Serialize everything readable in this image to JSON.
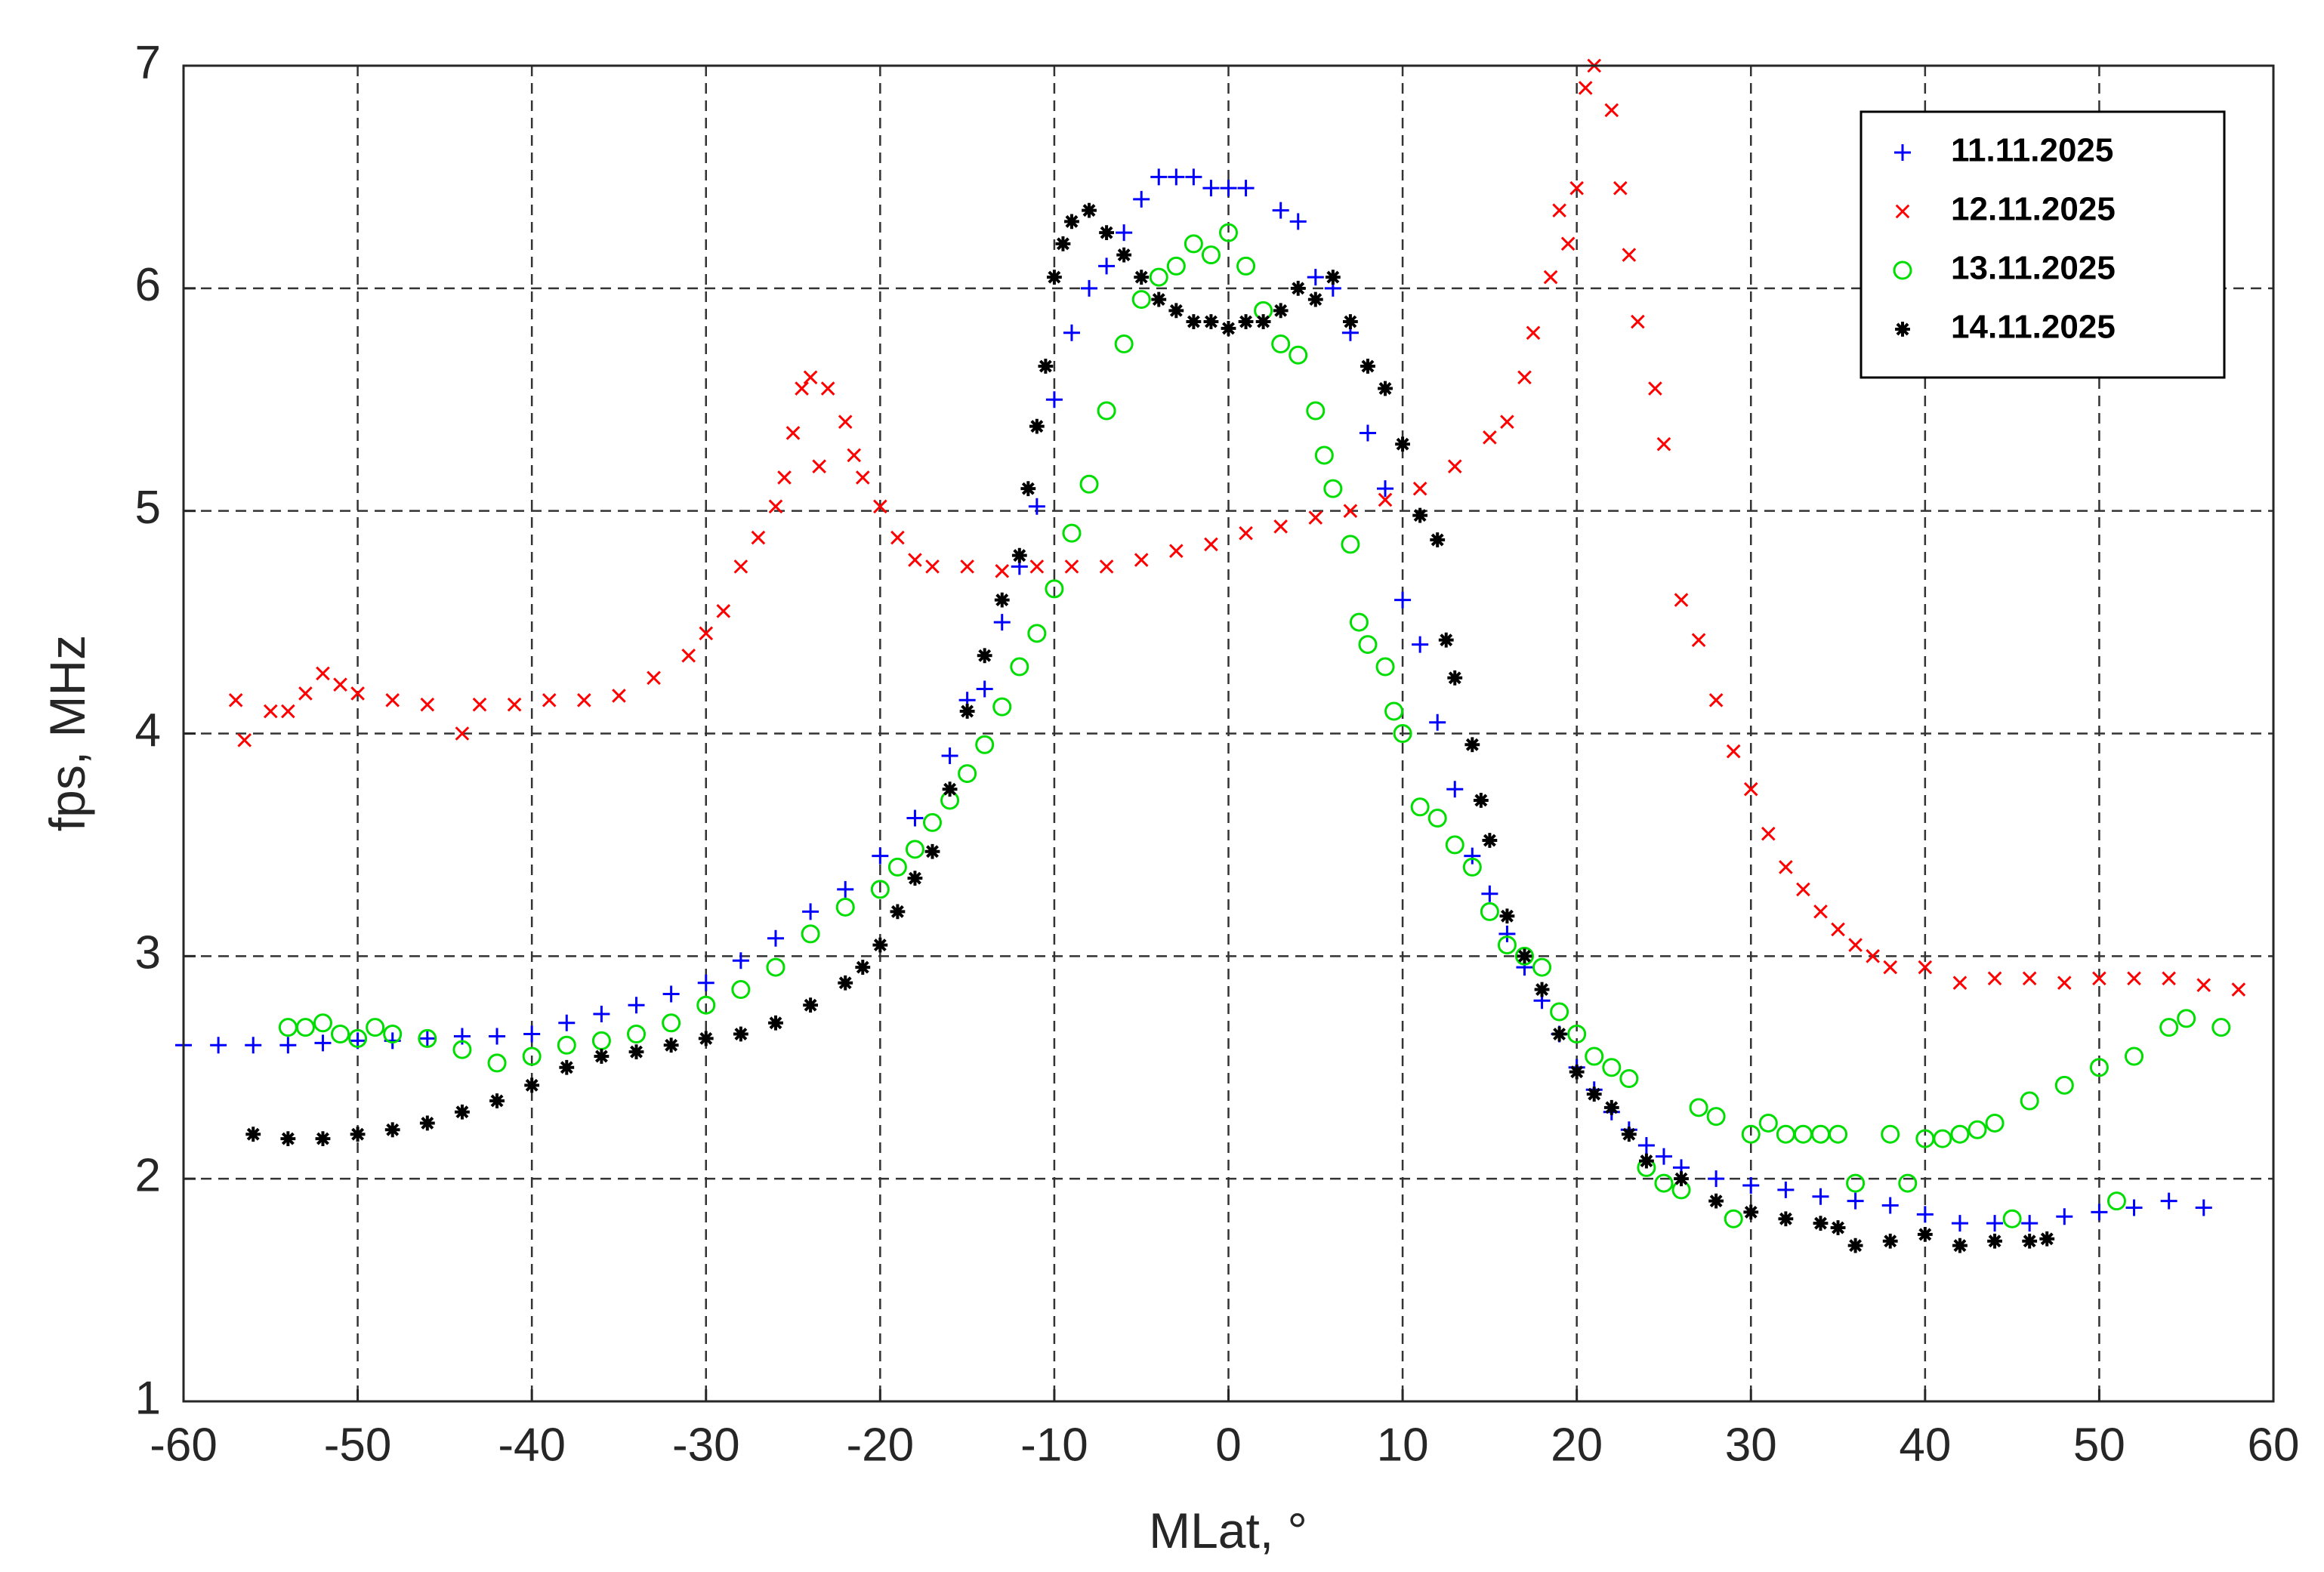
{
  "chart_data": {
    "type": "scatter",
    "xlabel": "MLat, °",
    "ylabel": "fps, MHz",
    "xlim": [
      -60,
      60
    ],
    "ylim": [
      1,
      7
    ],
    "xticks": [
      -60,
      -50,
      -40,
      -30,
      -20,
      -10,
      0,
      10,
      20,
      30,
      40,
      50,
      60
    ],
    "yticks": [
      1,
      2,
      3,
      4,
      5,
      6,
      7
    ],
    "grid": true,
    "legend": "upper right",
    "series": [
      {
        "name": "11.11.2025",
        "color": "#0000ff",
        "marker": "plus",
        "x": [
          -60,
          -58,
          -56,
          -54,
          -52,
          -50,
          -48,
          -46,
          -44,
          -42,
          -40,
          -38,
          -36,
          -34,
          -32,
          -30,
          -28,
          -26,
          -24,
          -22,
          -20,
          -18,
          -16,
          -15,
          -14,
          -13,
          -12,
          -11,
          -10,
          -9,
          -8,
          -7,
          -6,
          -5,
          -4,
          -3,
          -2,
          -1,
          0,
          1,
          3,
          4,
          5,
          6,
          7,
          8,
          9,
          10,
          11,
          12,
          13,
          14,
          15,
          16,
          17,
          18,
          19,
          20,
          21,
          22,
          23,
          24,
          25,
          26,
          28,
          30,
          32,
          34,
          36,
          38,
          40,
          42,
          44,
          46,
          48,
          50,
          52,
          54,
          56
        ],
        "values": [
          2.6,
          2.6,
          2.6,
          2.6,
          2.61,
          2.62,
          2.62,
          2.63,
          2.64,
          2.64,
          2.65,
          2.7,
          2.74,
          2.78,
          2.83,
          2.88,
          2.98,
          3.08,
          3.2,
          3.3,
          3.45,
          3.62,
          3.9,
          4.15,
          4.2,
          4.5,
          4.75,
          5.02,
          5.5,
          5.8,
          6.0,
          6.1,
          6.25,
          6.4,
          6.5,
          6.5,
          6.5,
          6.45,
          6.45,
          6.45,
          6.35,
          6.3,
          6.05,
          6.0,
          5.8,
          5.35,
          5.1,
          4.6,
          4.4,
          4.05,
          3.75,
          3.45,
          3.28,
          3.1,
          2.95,
          2.8,
          2.65,
          2.5,
          2.4,
          2.3,
          2.22,
          2.15,
          2.1,
          2.05,
          2.0,
          1.97,
          1.95,
          1.92,
          1.9,
          1.88,
          1.84,
          1.8,
          1.8,
          1.8,
          1.83,
          1.85,
          1.87,
          1.9,
          1.87
        ]
      },
      {
        "name": "12.11.2025",
        "color": "#ff0000",
        "marker": "x",
        "x": [
          -57,
          -56.5,
          -55,
          -54,
          -53,
          -52,
          -51,
          -50,
          -48,
          -46,
          -44,
          -43,
          -41,
          -39,
          -37,
          -35,
          -33,
          -31,
          -30,
          -29,
          -28,
          -27,
          -26,
          -25.5,
          -25,
          -24.5,
          -24,
          -23.5,
          -23,
          -22,
          -21.5,
          -21,
          -20,
          -19,
          -18,
          -17,
          -15,
          -13,
          -11,
          -9,
          -7,
          -5,
          -3,
          -1,
          1,
          3,
          5,
          7,
          9,
          11,
          13,
          15,
          16,
          17,
          17.5,
          18.5,
          19,
          19.5,
          20,
          20.5,
          21,
          22,
          22.5,
          23,
          23.5,
          24.5,
          25,
          26,
          27,
          28,
          29,
          30,
          31,
          32,
          33,
          34,
          35,
          36,
          37,
          38,
          40,
          42,
          44,
          46,
          48,
          50,
          52,
          54,
          56,
          58
        ],
        "values": [
          4.15,
          3.97,
          4.1,
          4.1,
          4.18,
          4.27,
          4.22,
          4.18,
          4.15,
          4.13,
          4.0,
          4.13,
          4.13,
          4.15,
          4.15,
          4.17,
          4.25,
          4.35,
          4.45,
          4.55,
          4.75,
          4.88,
          5.02,
          5.15,
          5.35,
          5.55,
          5.6,
          5.2,
          5.55,
          5.4,
          5.25,
          5.15,
          5.02,
          4.88,
          4.78,
          4.75,
          4.75,
          4.73,
          4.75,
          4.75,
          4.75,
          4.78,
          4.82,
          4.85,
          4.9,
          4.93,
          4.97,
          5.0,
          5.05,
          5.1,
          5.2,
          5.33,
          5.4,
          5.6,
          5.8,
          6.05,
          6.35,
          6.2,
          6.45,
          6.9,
          7.0,
          6.8,
          6.45,
          6.15,
          5.85,
          5.55,
          5.3,
          4.6,
          4.42,
          4.15,
          3.92,
          3.75,
          3.55,
          3.4,
          3.3,
          3.2,
          3.12,
          3.05,
          3.0,
          2.95,
          2.95,
          2.88,
          2.9,
          2.9,
          2.88,
          2.9,
          2.9,
          2.9,
          2.87,
          2.85
        ]
      },
      {
        "name": "13.11.2025",
        "color": "#00dd00",
        "marker": "circle",
        "x": [
          -54,
          -53,
          -52,
          -51,
          -50,
          -49,
          -48,
          -46,
          -44,
          -42,
          -40,
          -38,
          -36,
          -34,
          -32,
          -30,
          -28,
          -26,
          -24,
          -22,
          -20,
          -19,
          -18,
          -17,
          -16,
          -15,
          -14,
          -13,
          -12,
          -11,
          -10,
          -9,
          -8,
          -7,
          -6,
          -5,
          -4,
          -3,
          -2,
          -1,
          0,
          1,
          2,
          3,
          4,
          5,
          5.5,
          6,
          7,
          7.5,
          8,
          9,
          9.5,
          10,
          11,
          12,
          13,
          14,
          15,
          16,
          17,
          18,
          19,
          20,
          21,
          22,
          23,
          24,
          25,
          26,
          27,
          28,
          29,
          30,
          31,
          32,
          33,
          34,
          35,
          36,
          38,
          39,
          40,
          41,
          42,
          43,
          44,
          45,
          46,
          48,
          50,
          51,
          52,
          54,
          55,
          57
        ],
        "values": [
          2.68,
          2.68,
          2.7,
          2.65,
          2.63,
          2.68,
          2.65,
          2.63,
          2.58,
          2.52,
          2.55,
          2.6,
          2.62,
          2.65,
          2.7,
          2.78,
          2.85,
          2.95,
          3.1,
          3.22,
          3.3,
          3.4,
          3.48,
          3.6,
          3.7,
          3.82,
          3.95,
          4.12,
          4.3,
          4.45,
          4.65,
          4.9,
          5.12,
          5.45,
          5.75,
          5.95,
          6.05,
          6.1,
          6.2,
          6.15,
          6.25,
          6.1,
          5.9,
          5.75,
          5.7,
          5.45,
          5.25,
          5.1,
          4.85,
          4.5,
          4.4,
          4.3,
          4.1,
          4.0,
          3.67,
          3.62,
          3.5,
          3.4,
          3.2,
          3.05,
          3.0,
          2.95,
          2.75,
          2.65,
          2.55,
          2.5,
          2.45,
          2.05,
          1.98,
          1.95,
          2.32,
          2.28,
          1.82,
          2.2,
          2.25,
          2.2,
          2.2,
          2.2,
          2.2,
          1.98,
          2.2,
          1.98,
          2.18,
          2.18,
          2.2,
          2.22,
          2.25,
          1.82,
          2.35,
          2.42,
          2.5,
          1.9,
          2.55,
          2.68,
          2.72,
          2.68
        ]
      },
      {
        "name": "14.11.2025",
        "color": "#000000",
        "marker": "asterisk",
        "x": [
          -56,
          -54,
          -52,
          -50,
          -48,
          -46,
          -44,
          -42,
          -40,
          -38,
          -36,
          -34,
          -32,
          -30,
          -28,
          -26,
          -24,
          -22,
          -21,
          -20,
          -19,
          -18,
          -17,
          -16,
          -15,
          -14,
          -13,
          -12,
          -11.5,
          -11,
          -10.5,
          -10,
          -9.5,
          -9,
          -8,
          -7,
          -6,
          -5,
          -4,
          -3,
          -2,
          -1,
          0,
          1,
          2,
          3,
          4,
          5,
          6,
          7,
          8,
          9,
          10,
          11,
          12,
          12.5,
          13,
          14,
          14.5,
          15,
          16,
          17,
          18,
          19,
          20,
          21,
          22,
          23,
          24,
          26,
          28,
          30,
          32,
          34,
          35,
          36,
          38,
          40,
          42,
          44,
          46,
          47
        ],
        "values": [
          2.2,
          2.18,
          2.18,
          2.2,
          2.22,
          2.25,
          2.3,
          2.35,
          2.42,
          2.5,
          2.55,
          2.57,
          2.6,
          2.63,
          2.65,
          2.7,
          2.78,
          2.88,
          2.95,
          3.05,
          3.2,
          3.35,
          3.47,
          3.75,
          4.1,
          4.35,
          4.6,
          4.8,
          5.1,
          5.38,
          5.65,
          6.05,
          6.2,
          6.3,
          6.35,
          6.25,
          6.15,
          6.05,
          5.95,
          5.9,
          5.85,
          5.85,
          5.82,
          5.85,
          5.85,
          5.9,
          6.0,
          5.95,
          6.05,
          5.85,
          5.65,
          5.55,
          5.3,
          4.98,
          4.87,
          4.42,
          4.25,
          3.95,
          3.7,
          3.52,
          3.18,
          3.0,
          2.85,
          2.65,
          2.48,
          2.38,
          2.32,
          2.2,
          2.08,
          2.0,
          1.9,
          1.85,
          1.82,
          1.8,
          1.78,
          1.7,
          1.72,
          1.75,
          1.7,
          1.72,
          1.72,
          1.73
        ]
      }
    ]
  }
}
